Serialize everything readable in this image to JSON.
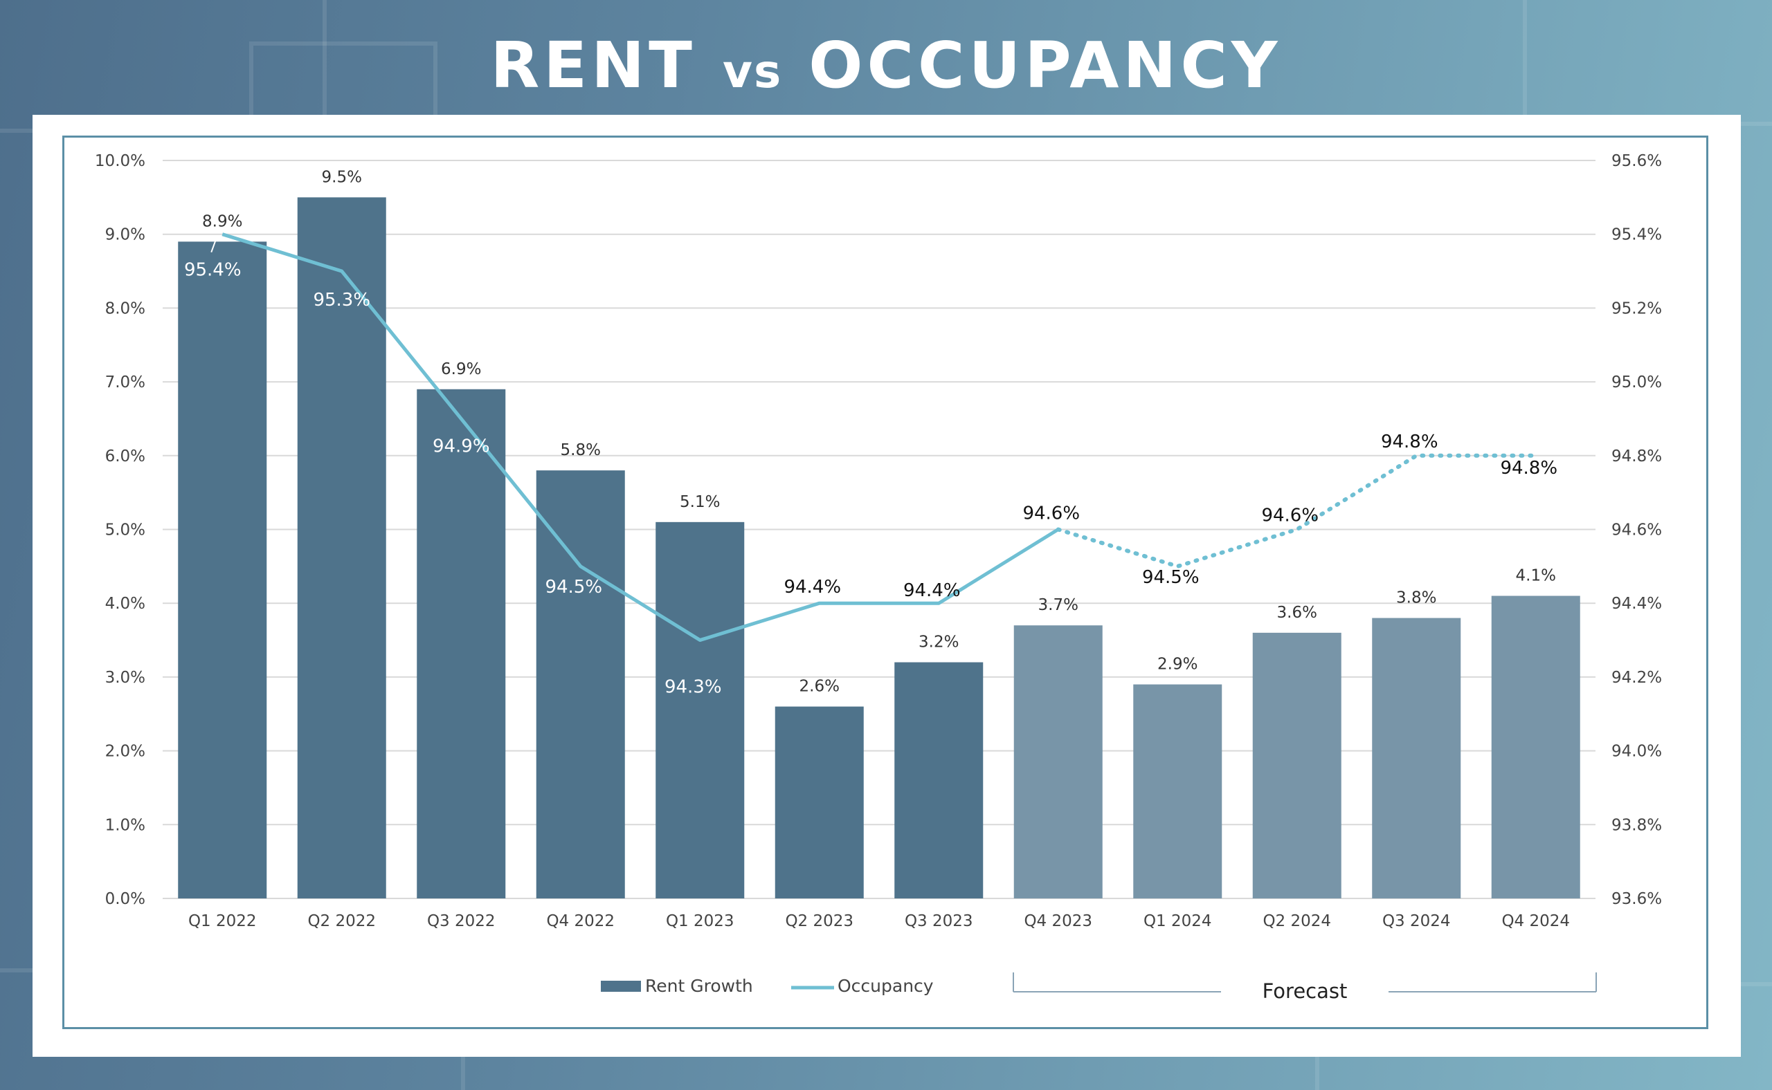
{
  "page": {
    "title_main": "RENT",
    "title_vs": "vs",
    "title_end": "OCCUPANCY"
  },
  "colors": {
    "bar_actual": "#4f738b",
    "bar_forecast": "#7895a8",
    "occupancy_line": "#6fbfd3",
    "grid": "#d9d9d9",
    "frame": "#5b8fa6"
  },
  "chart_data": {
    "type": "bar",
    "categories": [
      "Q1 2022",
      "Q2 2022",
      "Q3 2022",
      "Q4 2022",
      "Q1 2023",
      "Q2 2023",
      "Q3 2023",
      "Q4 2023",
      "Q1 2024",
      "Q2 2024",
      "Q3 2024",
      "Q4 2024"
    ],
    "series": [
      {
        "name": "Rent Growth",
        "type": "bar",
        "axis": "left",
        "values": [
          8.9,
          9.5,
          6.9,
          5.8,
          5.1,
          2.6,
          3.2,
          3.7,
          2.9,
          3.6,
          3.8,
          4.1
        ],
        "labels": [
          "8.9%",
          "9.5%",
          "6.9%",
          "5.8%",
          "5.1%",
          "2.6%",
          "3.2%",
          "3.7%",
          "2.9%",
          "3.6%",
          "3.8%",
          "4.1%"
        ]
      },
      {
        "name": "Occupancy",
        "type": "line",
        "axis": "right",
        "values": [
          95.4,
          95.3,
          94.9,
          94.5,
          94.3,
          94.4,
          94.4,
          94.6,
          94.5,
          94.6,
          94.8,
          94.8
        ],
        "labels": [
          "95.4%",
          "95.3%",
          "94.9%",
          "94.5%",
          "94.3%",
          "94.4%",
          "94.4%",
          "94.6%",
          "94.5%",
          "94.6%",
          "94.8%",
          "94.8%"
        ]
      }
    ],
    "forecast_start_index": 7,
    "forecast_label": "Forecast",
    "y_left": {
      "min": 0,
      "max": 10,
      "ticks": [
        "0.0%",
        "1.0%",
        "2.0%",
        "3.0%",
        "4.0%",
        "5.0%",
        "6.0%",
        "7.0%",
        "8.0%",
        "9.0%",
        "10.0%"
      ]
    },
    "y_right": {
      "min": 93.6,
      "max": 95.6,
      "ticks": [
        "93.6%",
        "93.8%",
        "94.0%",
        "94.2%",
        "94.4%",
        "94.6%",
        "94.8%",
        "95.0%",
        "95.2%",
        "95.4%",
        "95.6%"
      ]
    },
    "grid": true,
    "legend": {
      "position": "bottom-center",
      "entries": [
        "Rent Growth",
        "Occupancy"
      ]
    }
  }
}
